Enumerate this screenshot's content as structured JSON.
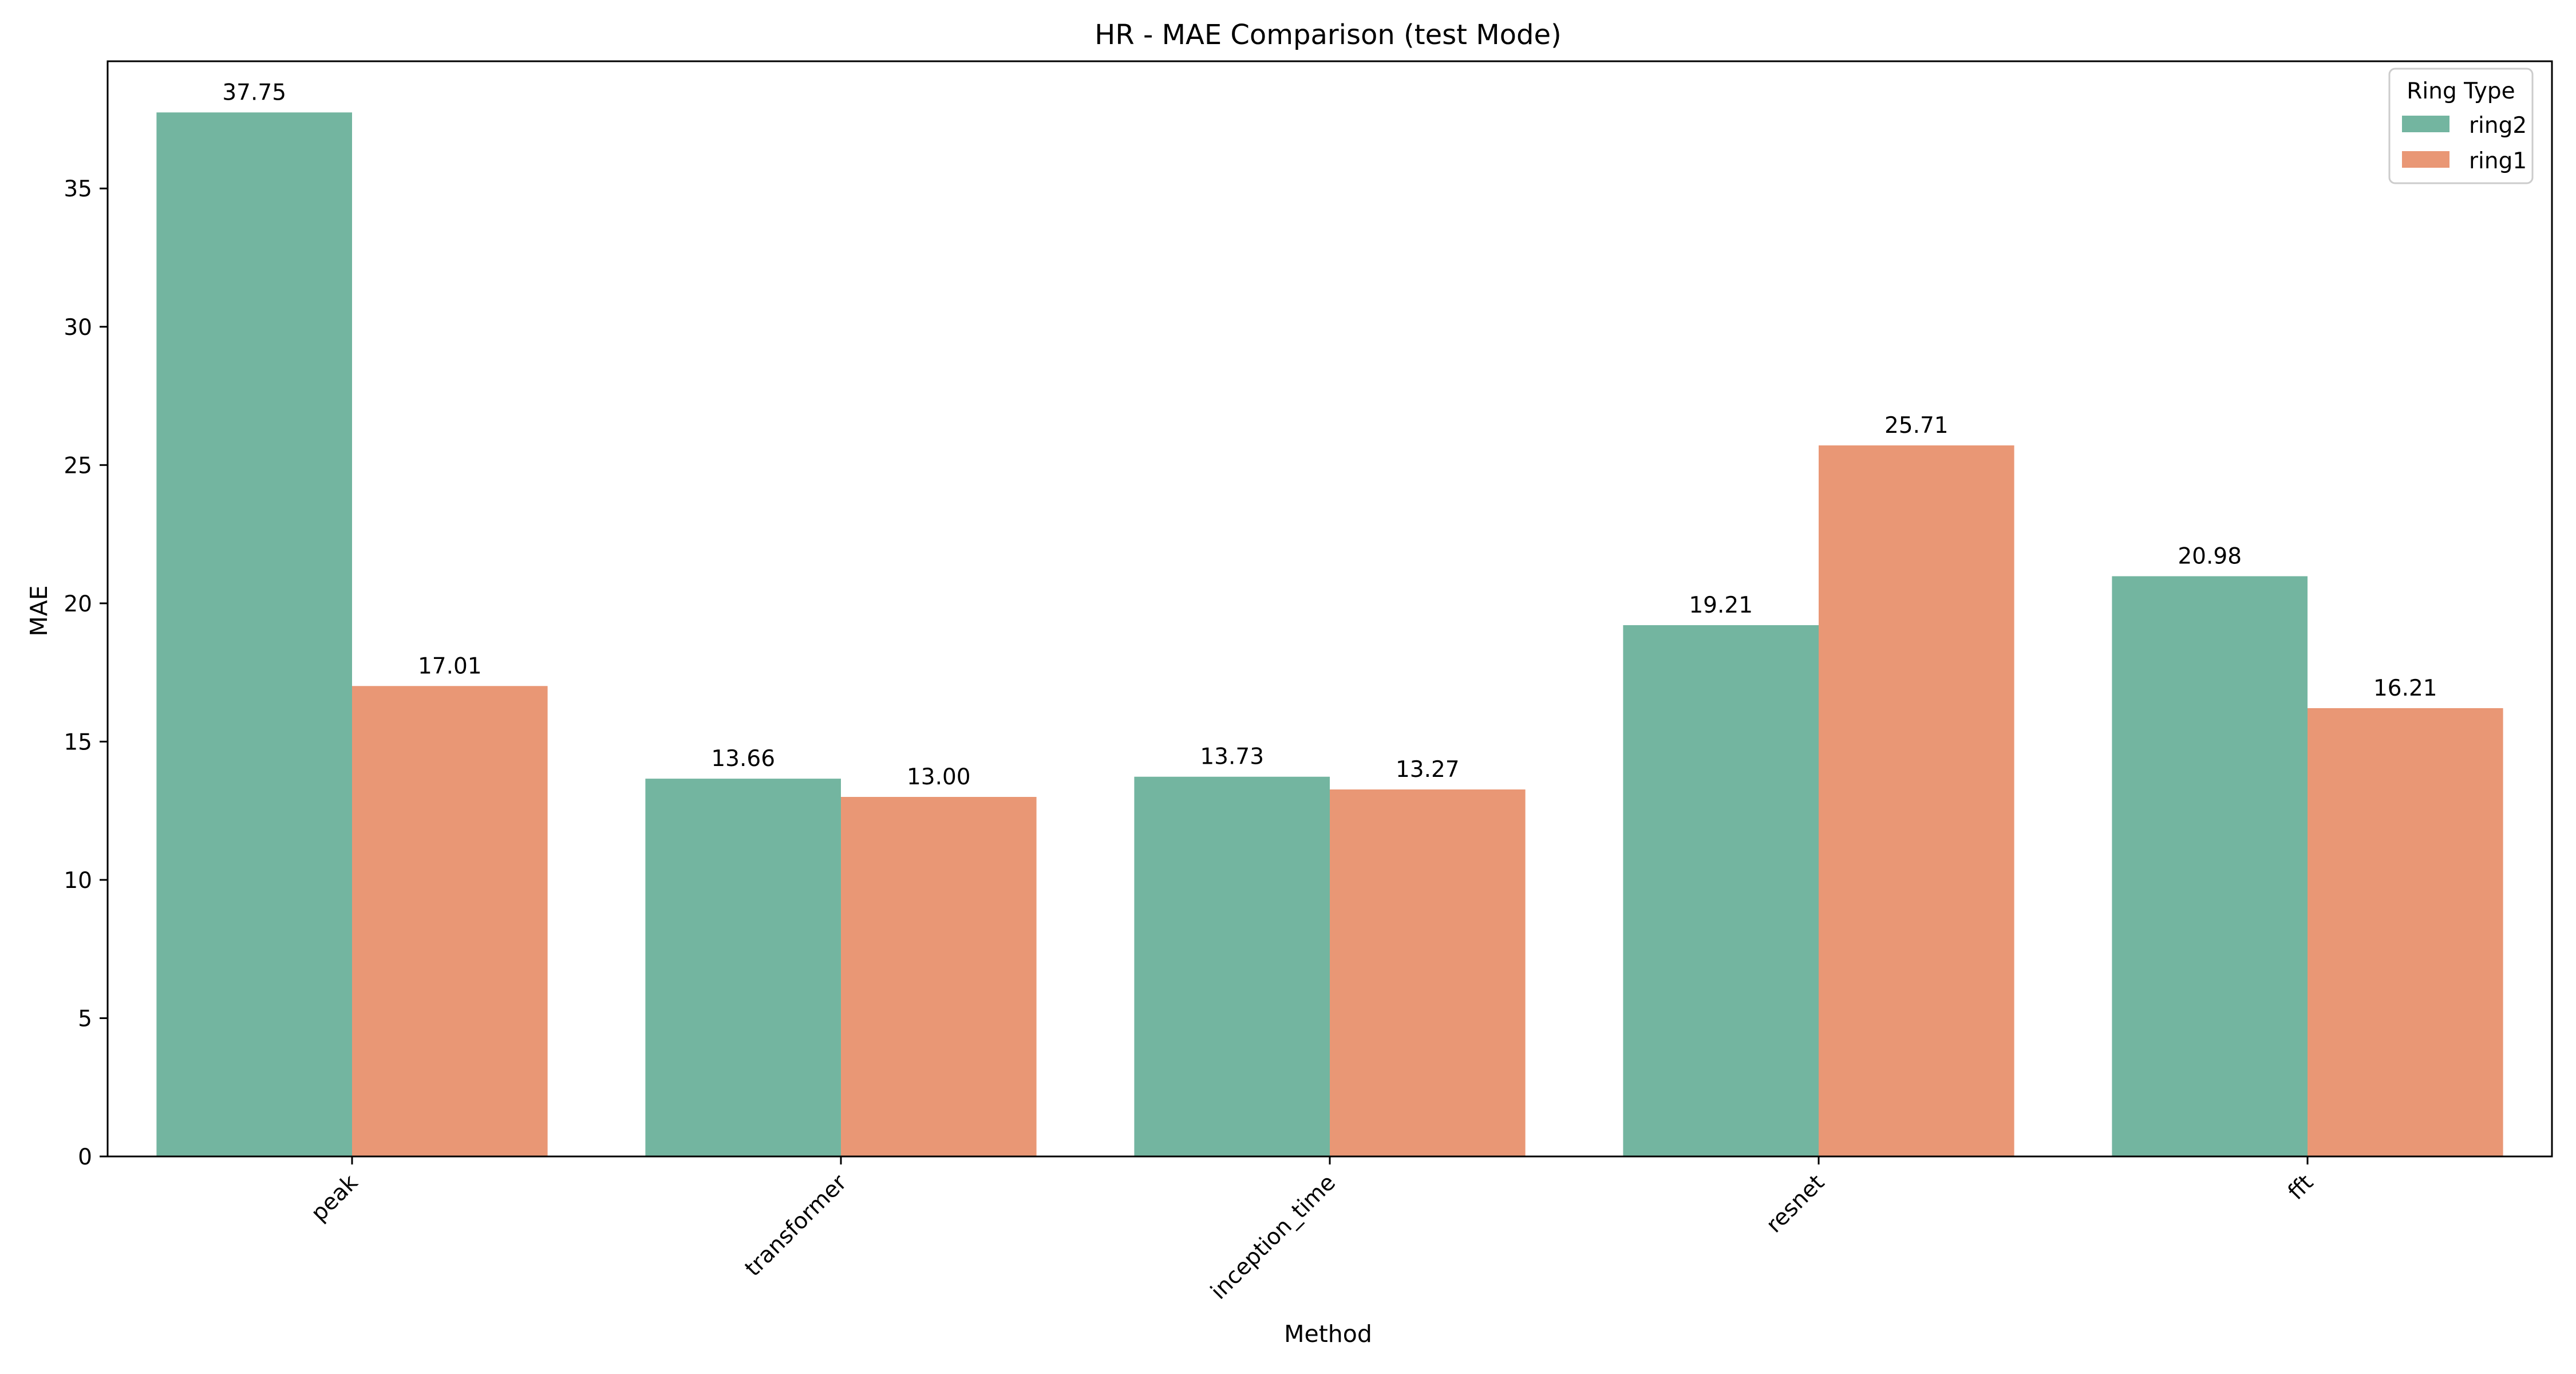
{
  "chart_data": {
    "type": "bar",
    "title": "HR - MAE Comparison (test Mode)",
    "xlabel": "Method",
    "ylabel": "MAE",
    "categories": [
      "peak",
      "transformer",
      "inception_time",
      "resnet",
      "fft"
    ],
    "series": [
      {
        "name": "ring2",
        "color": "#73b5a0",
        "values": [
          37.75,
          13.66,
          13.73,
          19.21,
          20.98
        ],
        "labels": [
          "37.75",
          "13.66",
          "13.73",
          "19.21",
          "20.98"
        ]
      },
      {
        "name": "ring1",
        "color": "#e99775",
        "values": [
          17.01,
          13.0,
          13.27,
          25.71,
          16.21
        ],
        "labels": [
          "17.01",
          "13.00",
          "13.27",
          "25.71",
          "16.21"
        ]
      }
    ],
    "ylim": [
      0,
      39.6
    ],
    "yticks": [
      0,
      5,
      10,
      15,
      20,
      25,
      30,
      35
    ],
    "ytick_labels": [
      "0",
      "5",
      "10",
      "15",
      "20",
      "25",
      "30",
      "35"
    ],
    "xtick_rotation": 45,
    "grid": false,
    "legend": {
      "title": "Ring Type",
      "position": "top-right"
    }
  }
}
